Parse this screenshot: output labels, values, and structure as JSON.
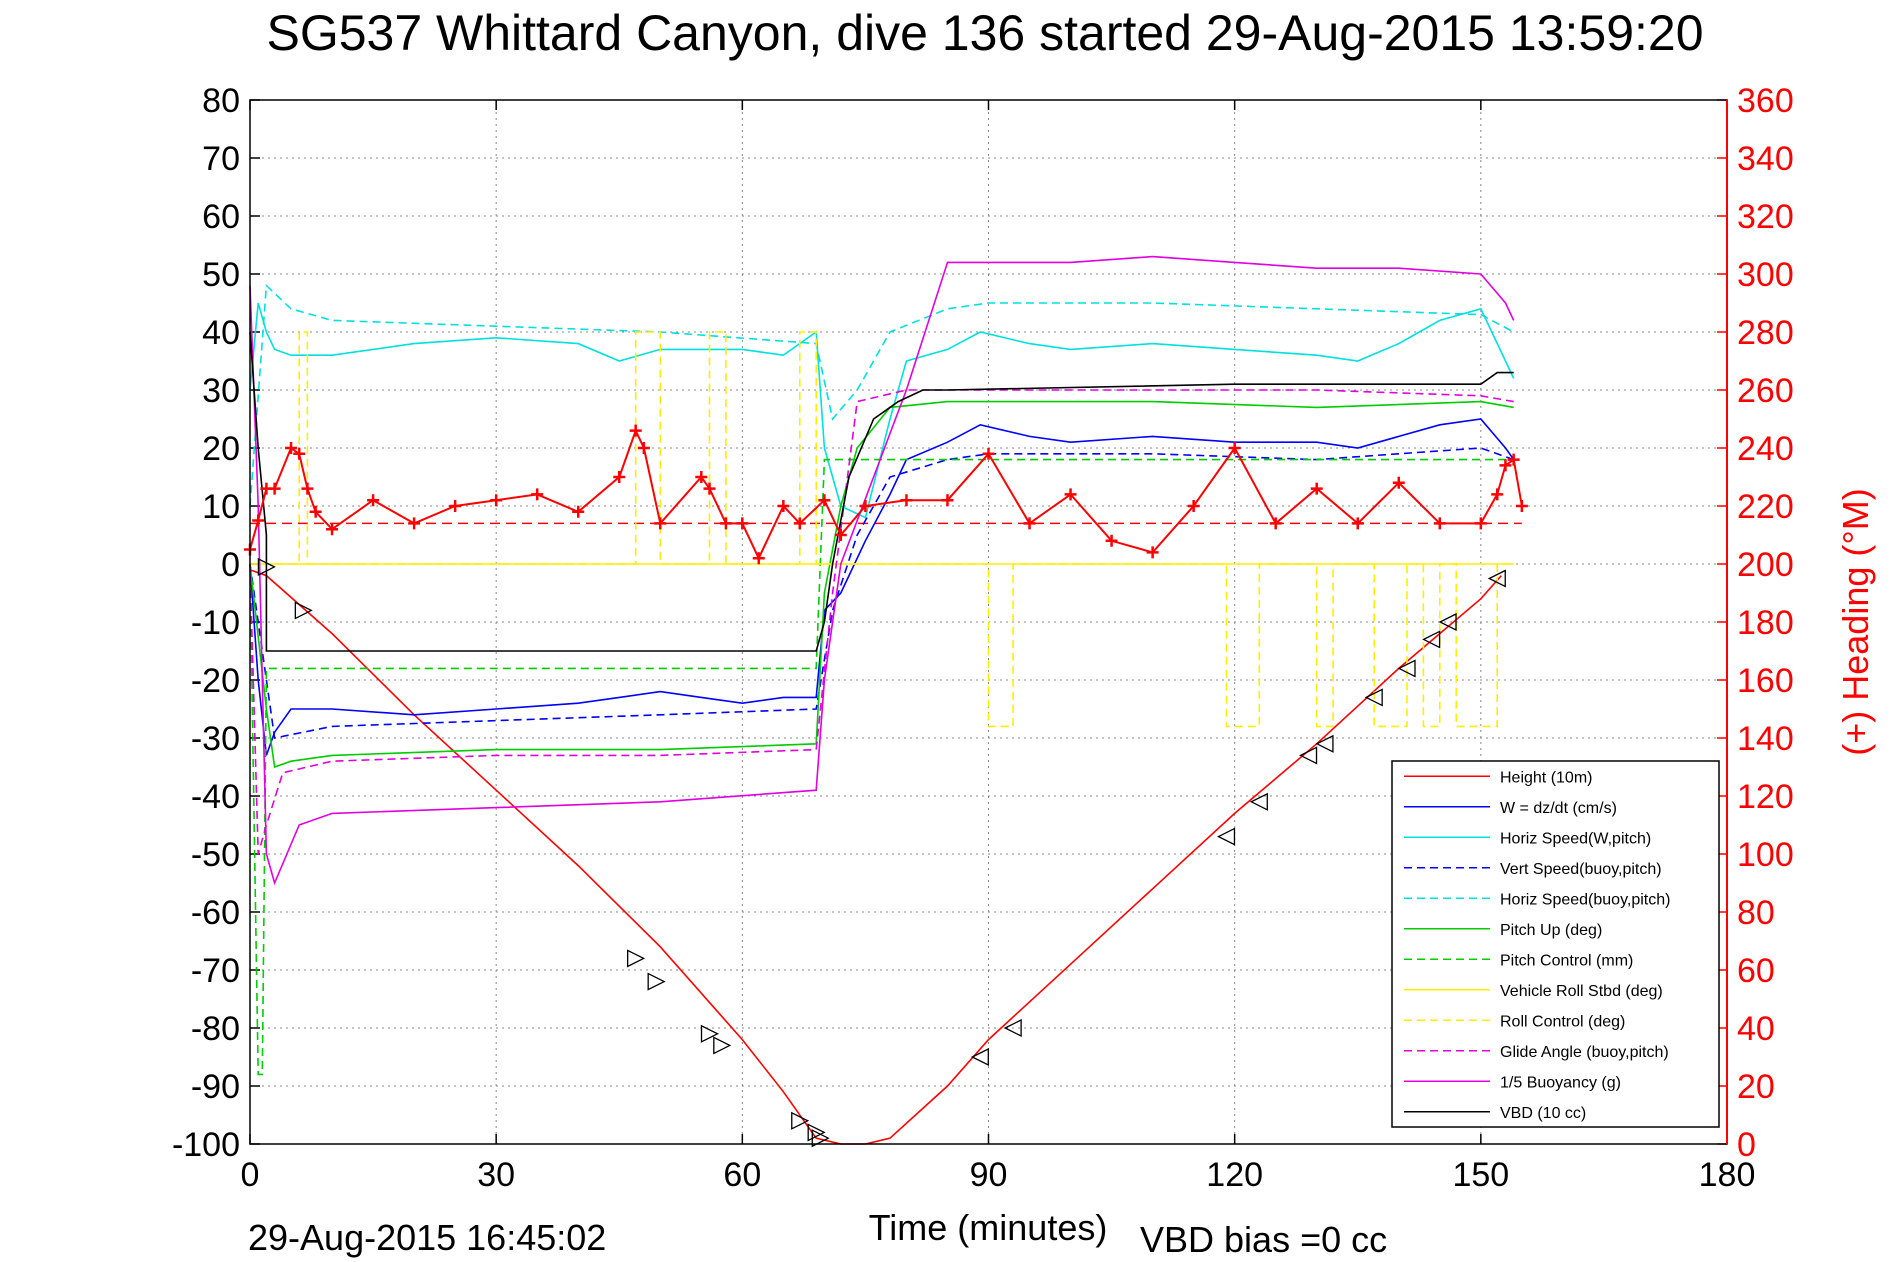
{
  "chart_data": {
    "type": "line",
    "title": "SG537 Whittard Canyon, dive 136 started 29-Aug-2015 13:59:20",
    "xlabel": "Time (minutes)",
    "ylabel": "",
    "y2label": "(+) Heading (°M)",
    "xlim": [
      0,
      180
    ],
    "ylim": [
      -100,
      80
    ],
    "y2lim": [
      0,
      360
    ],
    "x_ticks": [
      0,
      30,
      60,
      90,
      120,
      150,
      180
    ],
    "y_ticks": [
      80,
      70,
      60,
      50,
      40,
      30,
      20,
      10,
      0,
      -10,
      -20,
      -30,
      -40,
      -50,
      -60,
      -70,
      -80,
      -90,
      -100
    ],
    "y2_ticks": [
      360,
      340,
      320,
      300,
      280,
      260,
      240,
      220,
      200,
      180,
      160,
      140,
      120,
      100,
      80,
      60,
      40,
      20,
      0
    ],
    "grid": true,
    "legend_position": "bottom-right",
    "footer_timestamp": "29-Aug-2015 16:45:02",
    "footer_vbd": "VBD bias =0 cc",
    "series": [
      {
        "name": "Height (10m)",
        "color": "#ff0000",
        "style": "solid",
        "x": [
          0,
          2,
          10,
          20,
          30,
          40,
          50,
          60,
          65,
          69,
          72,
          75,
          78,
          85,
          90,
          100,
          110,
          120,
          130,
          140,
          150,
          152.5
        ],
        "y": [
          -1,
          -2,
          -12,
          -26,
          -39,
          -52,
          -66,
          -82,
          -91,
          -99,
          -100,
          -100,
          -99,
          -90,
          -82,
          -69,
          -56,
          -43,
          -31,
          -18,
          -6,
          -2
        ]
      },
      {
        "name": "W = dz/dt (cm/s)",
        "color": "#0000ff",
        "style": "solid",
        "x": [
          0,
          1,
          2,
          3,
          5,
          10,
          20,
          30,
          40,
          45,
          50,
          55,
          60,
          65,
          69,
          70,
          72,
          75,
          78,
          80,
          85,
          89,
          95,
          100,
          110,
          120,
          130,
          135,
          140,
          145,
          150,
          153,
          154
        ],
        "y": [
          0,
          -20,
          -33,
          -29,
          -25,
          -25,
          -26,
          -25,
          -24,
          -23,
          -22,
          -23,
          -24,
          -23,
          -23,
          -8,
          -5,
          4,
          12,
          18,
          21,
          24,
          22,
          21,
          22,
          21,
          21,
          20,
          22,
          24,
          25,
          20,
          18
        ]
      },
      {
        "name": "Horiz Speed(W,pitch)",
        "color": "#00e0e0",
        "style": "solid",
        "x": [
          0,
          1,
          2,
          3,
          5,
          10,
          20,
          30,
          40,
          45,
          50,
          55,
          60,
          65,
          69,
          70,
          72,
          75,
          78,
          80,
          85,
          89,
          95,
          100,
          110,
          120,
          130,
          135,
          140,
          145,
          150,
          153,
          154
        ],
        "y": [
          30,
          45,
          40,
          37,
          36,
          36,
          38,
          39,
          38,
          35,
          37,
          37,
          37,
          36,
          40,
          20,
          10,
          8,
          25,
          35,
          37,
          40,
          38,
          37,
          38,
          37,
          36,
          35,
          38,
          42,
          44,
          35,
          32
        ]
      },
      {
        "name": "Vert Speed(buoy,pitch)",
        "color": "#0000ff",
        "style": "dashed",
        "x": [
          0,
          3,
          10,
          30,
          50,
          69,
          71,
          74,
          78,
          85,
          90,
          110,
          130,
          150,
          154
        ],
        "y": [
          0,
          -30,
          -28,
          -27,
          -26,
          -25,
          -8,
          5,
          15,
          18,
          19,
          19,
          18,
          20,
          18
        ]
      },
      {
        "name": "Horiz Speed(buoy,pitch)",
        "color": "#00e0e0",
        "style": "dashed",
        "x": [
          0,
          2,
          5,
          10,
          30,
          50,
          69,
          71,
          74,
          78,
          85,
          90,
          110,
          130,
          150,
          154
        ],
        "y": [
          10,
          48,
          44,
          42,
          41,
          40,
          38,
          25,
          30,
          40,
          44,
          45,
          45,
          44,
          43,
          40
        ]
      },
      {
        "name": "Pitch Up (deg)",
        "color": "#00cc00",
        "style": "solid",
        "x": [
          0,
          2,
          3,
          5,
          10,
          30,
          50,
          69,
          70,
          72,
          74,
          78,
          85,
          90,
          110,
          130,
          150,
          154
        ],
        "y": [
          0,
          -25,
          -35,
          -34,
          -33,
          -32,
          -32,
          -31,
          -5,
          10,
          20,
          27,
          28,
          28,
          28,
          27,
          28,
          27
        ]
      },
      {
        "name": "Pitch Control (mm)",
        "color": "#00cc00",
        "style": "dashed",
        "x": [
          0,
          1,
          1.5,
          2,
          5,
          30,
          60,
          69,
          70,
          75,
          80,
          100,
          154
        ],
        "y": [
          0,
          -88,
          -88,
          -18,
          -18,
          -18,
          -18,
          -18,
          18,
          18,
          18,
          18,
          18
        ]
      },
      {
        "name": "Vehicle Roll Stbd (deg)",
        "color": "#ffee00",
        "style": "solid",
        "x": [
          0,
          5,
          30,
          60,
          69,
          70,
          72,
          90,
          120,
          154
        ],
        "y": [
          0,
          0,
          0,
          0,
          0,
          0,
          0,
          0,
          0,
          0
        ]
      },
      {
        "name": "Roll Control (deg)",
        "color": "#ffee00",
        "style": "dashed",
        "x": [
          0,
          6,
          6,
          7,
          7,
          47,
          47,
          50,
          50,
          56,
          56,
          58,
          58,
          67,
          67,
          69,
          69,
          90,
          90,
          93,
          93,
          119,
          119,
          123,
          123,
          130,
          130,
          132,
          132,
          137,
          137,
          141,
          141,
          143,
          143,
          145,
          145,
          147,
          147,
          152,
          152,
          154
        ],
        "y": [
          0,
          0,
          40,
          40,
          0,
          0,
          40,
          40,
          0,
          0,
          40,
          40,
          0,
          0,
          40,
          40,
          0,
          0,
          -28,
          -28,
          0,
          0,
          -28,
          -28,
          0,
          0,
          -28,
          -28,
          0,
          0,
          -28,
          -28,
          0,
          0,
          -28,
          -28,
          0,
          0,
          -28,
          -28,
          0,
          0
        ]
      },
      {
        "name": "Glide Angle (buoy,pitch)",
        "color": "#e000e0",
        "style": "dashed",
        "x": [
          0,
          1,
          2,
          4,
          10,
          30,
          50,
          69,
          71,
          74,
          80,
          90,
          110,
          130,
          150,
          154
        ],
        "y": [
          0,
          -50,
          -45,
          -36,
          -34,
          -33,
          -33,
          -32,
          -5,
          28,
          30,
          30,
          30,
          30,
          29,
          28
        ]
      },
      {
        "name": "1/5 Buoyancy (g)",
        "color": "#e000e0",
        "style": "solid",
        "x": [
          0,
          1,
          2,
          3,
          6,
          10,
          30,
          50,
          69,
          70,
          72,
          80,
          85,
          90,
          100,
          110,
          120,
          130,
          140,
          150,
          153,
          154
        ],
        "y": [
          48,
          10,
          -50,
          -55,
          -45,
          -43,
          -42,
          -41,
          -39,
          -20,
          0,
          30,
          52,
          52,
          52,
          53,
          52,
          51,
          51,
          50,
          45,
          42
        ]
      },
      {
        "name": "VBD (10 cc)",
        "color": "#000000",
        "style": "solid",
        "x": [
          0,
          1,
          2,
          2,
          68,
          69,
          70,
          71,
          73,
          76,
          79,
          82,
          85,
          120,
          150,
          152,
          154
        ],
        "y": [
          40,
          20,
          5,
          -15,
          -15,
          -15,
          -10,
          0,
          15,
          25,
          28,
          30,
          30,
          31,
          31,
          33,
          33
        ]
      }
    ],
    "heading": {
      "color": "#ff0000",
      "reference": 214,
      "x": [
        0,
        1,
        2,
        3,
        5,
        6,
        7,
        8,
        10,
        15,
        20,
        25,
        30,
        35,
        40,
        45,
        47,
        48,
        50,
        55,
        56,
        58,
        60,
        62,
        65,
        67,
        70,
        72,
        75,
        80,
        85,
        90,
        95,
        100,
        105,
        110,
        115,
        120,
        125,
        130,
        135,
        140,
        145,
        150,
        152,
        153,
        154,
        155
      ],
      "y": [
        205,
        215,
        226,
        226,
        240,
        238,
        226,
        218,
        212,
        222,
        214,
        220,
        222,
        224,
        218,
        230,
        246,
        240,
        214,
        230,
        226,
        214,
        214,
        202,
        220,
        214,
        222,
        210,
        220,
        222,
        222,
        238,
        214,
        224,
        208,
        204,
        220,
        240,
        214,
        226,
        214,
        228,
        214,
        214,
        224,
        234,
        236,
        220
      ]
    },
    "markers": {
      "color": "#000000",
      "x": [
        2,
        6.5,
        47,
        49.5,
        56,
        57.5,
        67,
        69,
        69.5,
        93,
        89,
        119,
        123,
        129,
        131,
        137,
        141,
        144,
        146,
        152
      ],
      "y": [
        -0.5,
        -8,
        -68,
        -72,
        -81,
        -83,
        -96,
        -98,
        -99,
        -80,
        -85,
        -47,
        -41,
        -33,
        -31,
        -23,
        -18,
        -13,
        -10,
        -2.5
      ]
    },
    "legend_entries": [
      "Height (10m)",
      "W = dz/dt (cm/s)",
      "Horiz Speed(W,pitch)",
      "Vert Speed(buoy,pitch)",
      "Horiz Speed(buoy,pitch)",
      "Pitch Up (deg)",
      "Pitch Control (mm)",
      "Vehicle Roll Stbd (deg)",
      "Roll Control (deg)",
      "Glide Angle (buoy,pitch)",
      "1/5 Buoyancy (g)",
      "VBD (10 cc)"
    ]
  }
}
